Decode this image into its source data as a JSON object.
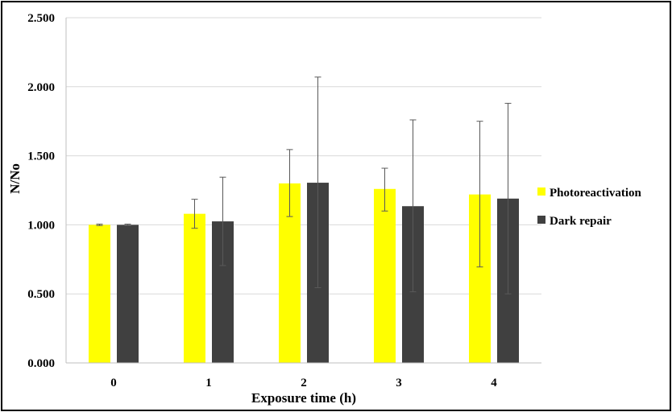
{
  "chart_data": {
    "type": "bar",
    "xlabel": "Exposure time (h)",
    "ylabel": "N/No",
    "categories": [
      "0",
      "1",
      "2",
      "3",
      "4"
    ],
    "ylim": [
      0,
      2.5
    ],
    "yticks": [
      "0.000",
      "0.500",
      "1.000",
      "1.500",
      "2.000",
      "2.500"
    ],
    "grid": true,
    "legend_position": "right",
    "series": [
      {
        "name": "Photoreactivation",
        "color": "#ffff00",
        "values": [
          1.0,
          1.08,
          1.3,
          1.26,
          1.22
        ],
        "error_low": [
          0.995,
          0.975,
          1.06,
          1.1,
          0.695
        ],
        "error_high": [
          1.005,
          1.185,
          1.545,
          1.41,
          1.75
        ]
      },
      {
        "name": "Dark repair",
        "color": "#404040",
        "values": [
          1.0,
          1.025,
          1.305,
          1.135,
          1.19
        ],
        "error_low": [
          0.995,
          0.705,
          0.545,
          0.515,
          0.5
        ],
        "error_high": [
          1.005,
          1.345,
          2.07,
          1.76,
          1.88
        ]
      }
    ]
  }
}
